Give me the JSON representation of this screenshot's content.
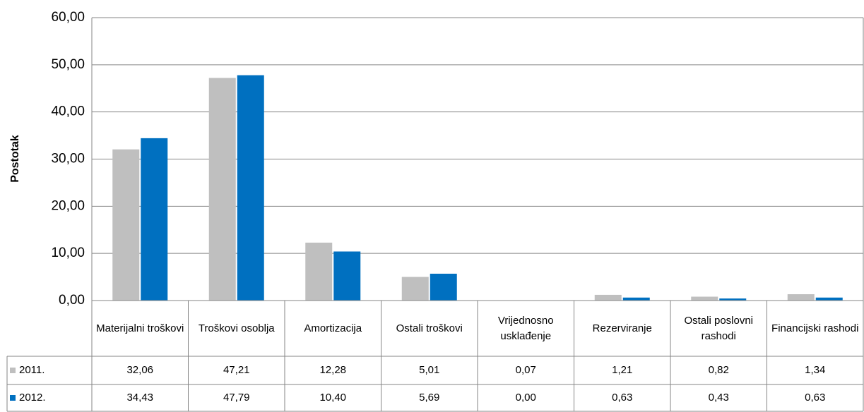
{
  "chart_data": {
    "type": "bar",
    "y_label": "Postotak",
    "categories": [
      "Materijalni troškovi",
      "Troškovi osoblja",
      "Amortizacija",
      "Ostali troškovi",
      "Vrijednosno usklađenje",
      "Rezerviranje",
      "Ostali poslovni rashodi",
      "Financijski rashodi"
    ],
    "series": [
      {
        "name": "2011.",
        "color": "#bfbfbf",
        "values": [
          32.06,
          47.21,
          12.28,
          5.01,
          0.07,
          1.21,
          0.82,
          1.34
        ],
        "value_labels": [
          "32,06",
          "47,21",
          "12,28",
          "5,01",
          "0,07",
          "1,21",
          "0,82",
          "1,34"
        ]
      },
      {
        "name": "2012.",
        "color": "#0070c0",
        "values": [
          34.43,
          47.79,
          10.4,
          5.69,
          0.0,
          0.63,
          0.43,
          0.63
        ],
        "value_labels": [
          "34,43",
          "47,79",
          "10,40",
          "5,69",
          "0,00",
          "0,63",
          "0,43",
          "0,63"
        ]
      }
    ],
    "ylim": [
      0,
      60
    ],
    "yticks": [
      {
        "value": 0,
        "label": "0,00"
      },
      {
        "value": 10,
        "label": "10,00"
      },
      {
        "value": 20,
        "label": "20,00"
      },
      {
        "value": 30,
        "label": "30,00"
      },
      {
        "value": 40,
        "label": "40,00"
      },
      {
        "value": 50,
        "label": "50,00"
      },
      {
        "value": 60,
        "label": "60,00"
      }
    ],
    "grid": true
  }
}
